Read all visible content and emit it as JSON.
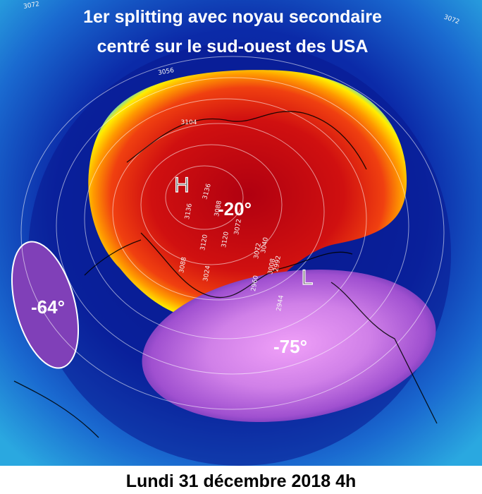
{
  "title": {
    "line1": "1er splitting avec noyau secondaire",
    "line2": "centré sur le sud-ouest des USA"
  },
  "annotations": {
    "high": "H",
    "low": "L",
    "temperatures": [
      "-20°",
      "-64°",
      "-75°"
    ]
  },
  "contour_labels": [
    3072,
    3072,
    3056,
    3104,
    3136,
    3136,
    3120,
    3120,
    3088,
    3072,
    3072,
    3040,
    3008,
    2992,
    3088,
    3024,
    2960,
    2944
  ],
  "footer": "Lundi 31 décembre 2018 4h"
}
